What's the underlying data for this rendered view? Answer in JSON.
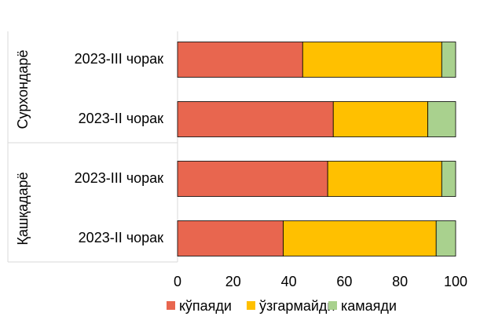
{
  "chart_data": {
    "type": "stacked-barh",
    "groups": [
      "Сурхондарё",
      "Қашқадарё"
    ],
    "categories": [
      "2023-III чорак",
      "2023-II чорак",
      "2023-III чорак",
      "2023-II чорак"
    ],
    "series": [
      {
        "name": "кўпаяди",
        "color": "#e8664f",
        "values": [
          45,
          56,
          54,
          38
        ]
      },
      {
        "name": "ўзгармайди",
        "color": "#ffc000",
        "values": [
          50,
          34,
          41,
          55
        ]
      },
      {
        "name": "камаяди",
        "color": "#a9d18e",
        "values": [
          5,
          10,
          5,
          7
        ]
      }
    ],
    "xlim": [
      0,
      100
    ],
    "xticks": [
      0,
      20,
      40,
      60,
      80,
      100
    ],
    "legend": "bottom"
  }
}
